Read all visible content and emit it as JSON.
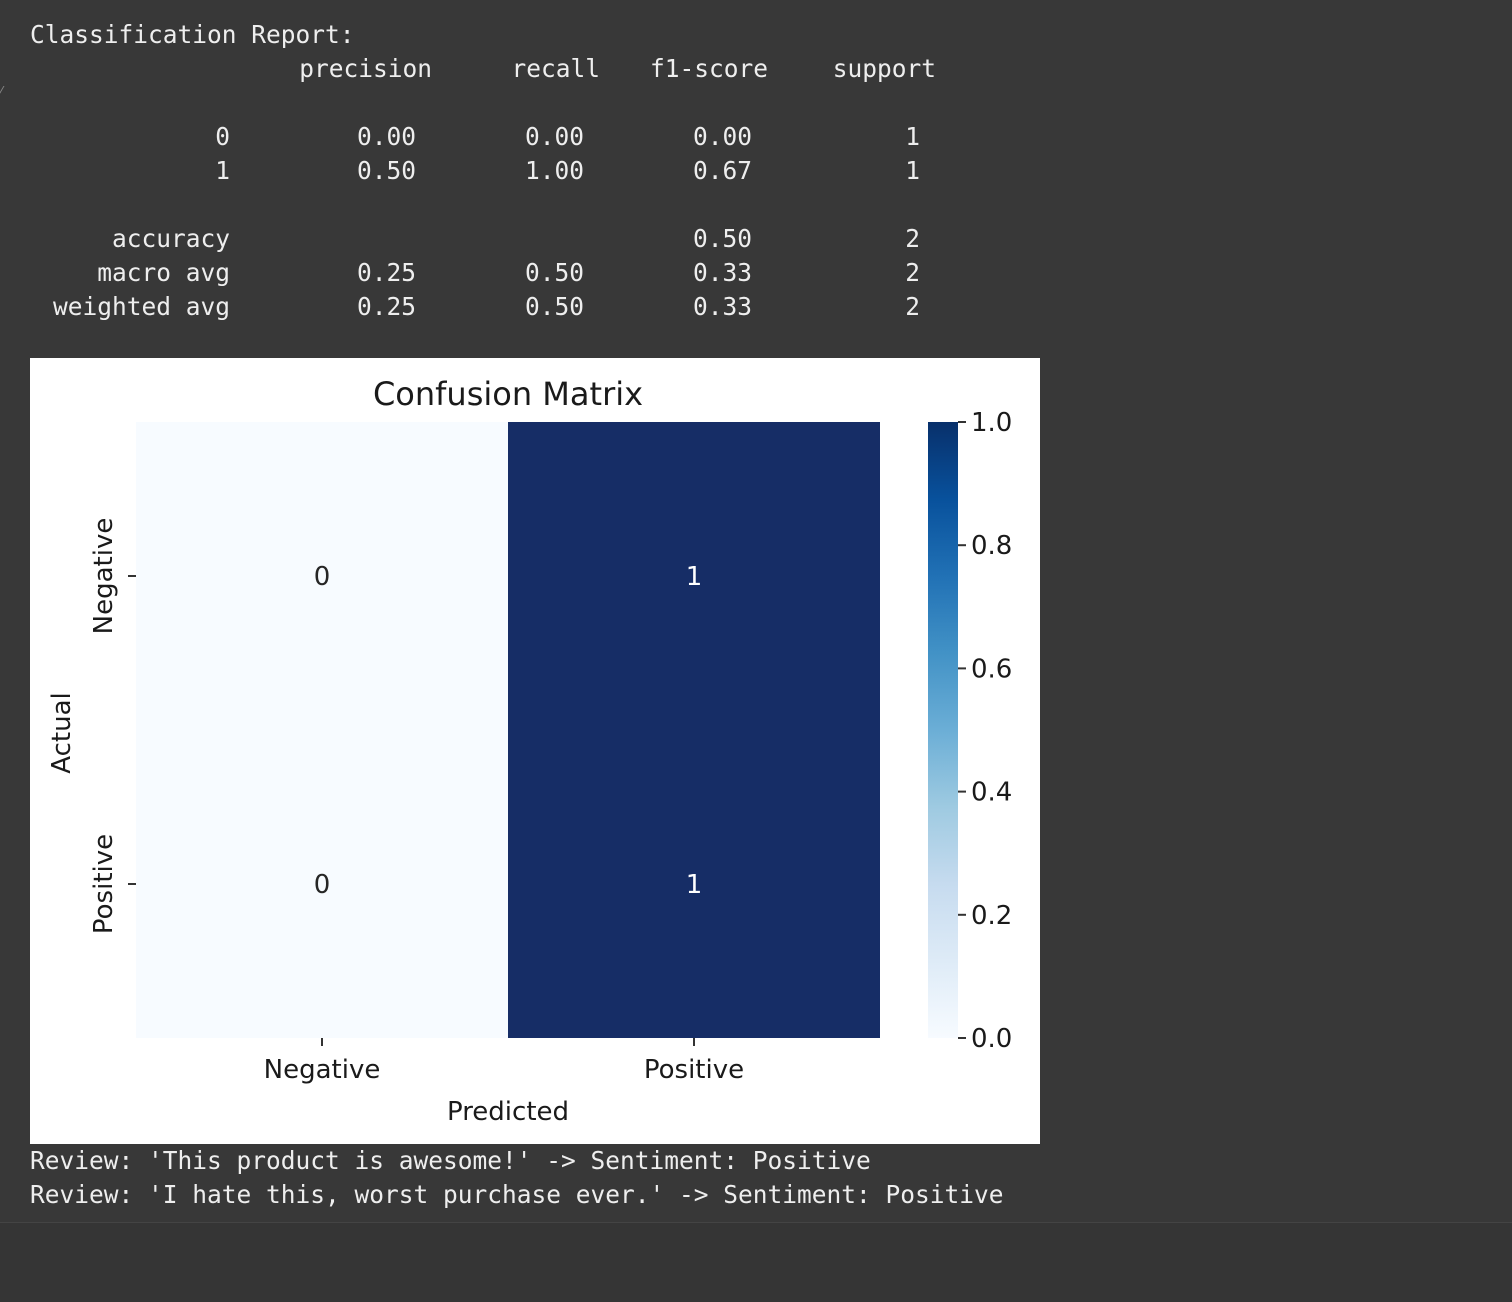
{
  "report": {
    "title": "Classification Report:",
    "headers": [
      "precision",
      "recall",
      "f1-score",
      "support"
    ],
    "rows": [
      {
        "label": "0",
        "precision": "0.00",
        "recall": "0.00",
        "f1": "0.00",
        "support": "1"
      },
      {
        "label": "1",
        "precision": "0.50",
        "recall": "1.00",
        "f1": "0.67",
        "support": "1"
      },
      {
        "label": "accuracy",
        "precision": "",
        "recall": "",
        "f1": "0.50",
        "support": "2"
      },
      {
        "label": "macro avg",
        "precision": "0.25",
        "recall": "0.50",
        "f1": "0.33",
        "support": "2"
      },
      {
        "label": "weighted avg",
        "precision": "0.25",
        "recall": "0.50",
        "f1": "0.33",
        "support": "2"
      }
    ]
  },
  "chart_data": {
    "type": "heatmap",
    "title": "Confusion Matrix",
    "xlabel": "Predicted",
    "ylabel": "Actual",
    "x_categories": [
      "Negative",
      "Positive"
    ],
    "y_categories": [
      "Negative",
      "Positive"
    ],
    "values": [
      [
        0,
        1
      ],
      [
        0,
        1
      ]
    ],
    "colormap": "Blues",
    "colorbar": {
      "min": 0.0,
      "max": 1.0,
      "ticks": [
        "0.0",
        "0.2",
        "0.4",
        "0.6",
        "0.8",
        "1.0"
      ]
    },
    "colors": {
      "low": "#f7fbff",
      "high": "#08306b",
      "cell_high": "#162d66"
    }
  },
  "predictions": [
    "Review: 'This product is awesome!' -> Sentiment: Positive",
    "Review: 'I hate this, worst purchase ever.' -> Sentiment: Positive"
  ]
}
